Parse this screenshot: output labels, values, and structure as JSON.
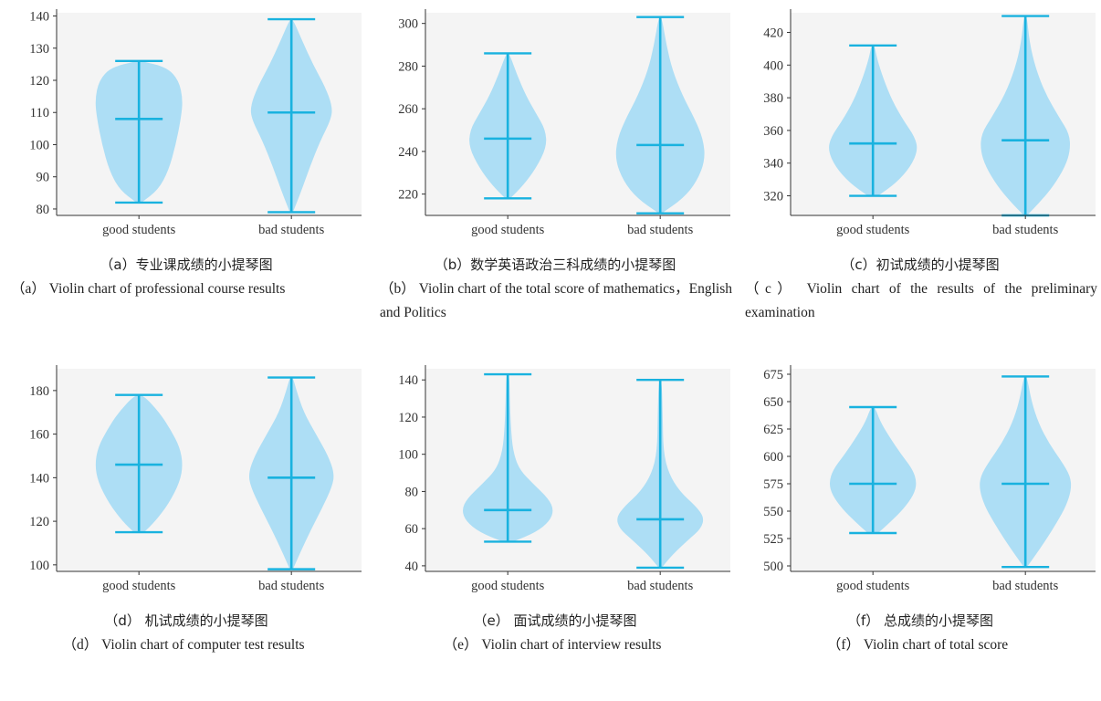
{
  "colors": {
    "violin_fill": "#a9dcf4",
    "violin_line": "#19b2df",
    "background": "#f4f4f4",
    "axis": "#333333"
  },
  "captions": [
    {
      "zh": "（a）专业课成绩的小提琴图",
      "en": "（a） Violin chart of professional course results"
    },
    {
      "zh": "（b）数学英语政治三科成绩的小提琴图",
      "en": "（b） Violin chart of the total score of mathematics，English and Politics"
    },
    {
      "zh": "（c）初试成绩的小提琴图",
      "en": "（c） Violin chart of the results of the preliminary examination"
    },
    {
      "zh": "（d） 机试成绩的小提琴图",
      "en": "（d） Violin chart of computer test results"
    },
    {
      "zh": "（e） 面试成绩的小提琴图",
      "en": "（e） Violin chart of interview results"
    },
    {
      "zh": "（f） 总成绩的小提琴图",
      "en": "（f） Violin chart of total score"
    }
  ],
  "chart_data": [
    {
      "type": "violin",
      "categories": [
        "good students",
        "bad students"
      ],
      "ylim": [
        78,
        141
      ],
      "yticks": [
        80,
        90,
        100,
        110,
        120,
        130,
        140
      ],
      "series": [
        {
          "category": "good students",
          "min": 82,
          "max": 126,
          "median": 108,
          "shape": [
            [
              82,
              0.05
            ],
            [
              86,
              0.38
            ],
            [
              92,
              0.58
            ],
            [
              100,
              0.72
            ],
            [
              108,
              0.82
            ],
            [
              114,
              0.86
            ],
            [
              120,
              0.78
            ],
            [
              124,
              0.55
            ],
            [
              126,
              0.05
            ]
          ]
        },
        {
          "category": "bad students",
          "min": 79,
          "max": 139,
          "median": 110,
          "shape": [
            [
              79,
              0.03
            ],
            [
              85,
              0.18
            ],
            [
              93,
              0.36
            ],
            [
              101,
              0.56
            ],
            [
              108,
              0.78
            ],
            [
              112,
              0.8
            ],
            [
              118,
              0.66
            ],
            [
              125,
              0.42
            ],
            [
              132,
              0.22
            ],
            [
              139,
              0.03
            ]
          ]
        }
      ]
    },
    {
      "type": "violin",
      "categories": [
        "good students",
        "bad students"
      ],
      "ylim": [
        210,
        305
      ],
      "yticks": [
        220,
        240,
        260,
        280,
        300
      ],
      "series": [
        {
          "category": "good students",
          "min": 218,
          "max": 286,
          "median": 246,
          "shape": [
            [
              218,
              0.05
            ],
            [
              224,
              0.3
            ],
            [
              232,
              0.55
            ],
            [
              242,
              0.76
            ],
            [
              250,
              0.74
            ],
            [
              258,
              0.55
            ],
            [
              266,
              0.36
            ],
            [
              276,
              0.18
            ],
            [
              286,
              0.03
            ]
          ]
        },
        {
          "category": "bad students",
          "min": 211,
          "max": 303,
          "median": 243,
          "shape": [
            [
              211,
              0.03
            ],
            [
              218,
              0.45
            ],
            [
              226,
              0.72
            ],
            [
              236,
              0.88
            ],
            [
              246,
              0.84
            ],
            [
              256,
              0.66
            ],
            [
              266,
              0.44
            ],
            [
              278,
              0.24
            ],
            [
              290,
              0.12
            ],
            [
              303,
              0.03
            ]
          ]
        }
      ]
    },
    {
      "type": "violin",
      "categories": [
        "good students",
        "bad students"
      ],
      "ylim": [
        308,
        432
      ],
      "yticks": [
        320,
        340,
        360,
        380,
        400,
        420
      ],
      "series": [
        {
          "category": "good students",
          "min": 320,
          "max": 412,
          "median": 352,
          "shape": [
            [
              320,
              0.1
            ],
            [
              328,
              0.46
            ],
            [
              338,
              0.74
            ],
            [
              348,
              0.88
            ],
            [
              356,
              0.82
            ],
            [
              366,
              0.6
            ],
            [
              378,
              0.38
            ],
            [
              392,
              0.2
            ],
            [
              404,
              0.08
            ],
            [
              412,
              0.03
            ]
          ]
        },
        {
          "category": "bad students",
          "min": 308,
          "max": 430,
          "median": 354,
          "shape": [
            [
              308,
              0.03
            ],
            [
              316,
              0.28
            ],
            [
              326,
              0.55
            ],
            [
              338,
              0.78
            ],
            [
              348,
              0.88
            ],
            [
              358,
              0.86
            ],
            [
              368,
              0.66
            ],
            [
              382,
              0.4
            ],
            [
              398,
              0.2
            ],
            [
              414,
              0.08
            ],
            [
              430,
              0.03
            ]
          ]
        }
      ]
    },
    {
      "type": "violin",
      "categories": [
        "good students",
        "bad students"
      ],
      "ylim": [
        97,
        190
      ],
      "yticks": [
        100,
        120,
        140,
        160,
        180
      ],
      "series": [
        {
          "category": "good students",
          "min": 115,
          "max": 178,
          "median": 146,
          "shape": [
            [
              115,
              0.1
            ],
            [
              120,
              0.32
            ],
            [
              128,
              0.58
            ],
            [
              138,
              0.8
            ],
            [
              146,
              0.86
            ],
            [
              154,
              0.8
            ],
            [
              162,
              0.62
            ],
            [
              170,
              0.4
            ],
            [
              178,
              0.08
            ]
          ]
        },
        {
          "category": "bad students",
          "min": 98,
          "max": 186,
          "median": 140,
          "shape": [
            [
              98,
              0.03
            ],
            [
              106,
              0.18
            ],
            [
              116,
              0.38
            ],
            [
              126,
              0.6
            ],
            [
              136,
              0.8
            ],
            [
              142,
              0.84
            ],
            [
              150,
              0.72
            ],
            [
              160,
              0.48
            ],
            [
              170,
              0.24
            ],
            [
              180,
              0.1
            ],
            [
              186,
              0.03
            ]
          ]
        }
      ]
    },
    {
      "type": "violin",
      "categories": [
        "good students",
        "bad students"
      ],
      "ylim": [
        37,
        146
      ],
      "yticks": [
        40,
        60,
        80,
        100,
        120,
        140
      ],
      "series": [
        {
          "category": "good students",
          "min": 53,
          "max": 143,
          "median": 70,
          "shape": [
            [
              53,
              0.1
            ],
            [
              58,
              0.55
            ],
            [
              64,
              0.82
            ],
            [
              70,
              0.9
            ],
            [
              76,
              0.8
            ],
            [
              84,
              0.5
            ],
            [
              92,
              0.22
            ],
            [
              102,
              0.1
            ],
            [
              115,
              0.06
            ],
            [
              130,
              0.04
            ],
            [
              143,
              0.03
            ]
          ]
        },
        {
          "category": "bad students",
          "min": 39,
          "max": 140,
          "median": 65,
          "shape": [
            [
              39,
              0.03
            ],
            [
              46,
              0.24
            ],
            [
              54,
              0.55
            ],
            [
              60,
              0.8
            ],
            [
              66,
              0.86
            ],
            [
              72,
              0.7
            ],
            [
              80,
              0.38
            ],
            [
              90,
              0.16
            ],
            [
              102,
              0.06
            ],
            [
              120,
              0.05
            ],
            [
              140,
              0.03
            ]
          ]
        }
      ]
    },
    {
      "type": "violin",
      "categories": [
        "good students",
        "bad students"
      ],
      "ylim": [
        495,
        680
      ],
      "yticks": [
        500,
        525,
        550,
        575,
        600,
        625,
        650,
        675
      ],
      "series": [
        {
          "category": "good students",
          "min": 530,
          "max": 645,
          "median": 575,
          "shape": [
            [
              530,
              0.1
            ],
            [
              540,
              0.34
            ],
            [
              552,
              0.6
            ],
            [
              565,
              0.8
            ],
            [
              576,
              0.86
            ],
            [
              588,
              0.78
            ],
            [
              602,
              0.55
            ],
            [
              618,
              0.32
            ],
            [
              632,
              0.14
            ],
            [
              645,
              0.04
            ]
          ]
        },
        {
          "category": "bad students",
          "min": 499,
          "max": 673,
          "median": 575,
          "shape": [
            [
              499,
              0.03
            ],
            [
              510,
              0.2
            ],
            [
              525,
              0.42
            ],
            [
              540,
              0.62
            ],
            [
              555,
              0.8
            ],
            [
              570,
              0.9
            ],
            [
              582,
              0.88
            ],
            [
              596,
              0.7
            ],
            [
              612,
              0.46
            ],
            [
              630,
              0.26
            ],
            [
              650,
              0.12
            ],
            [
              673,
              0.03
            ]
          ]
        }
      ]
    }
  ]
}
